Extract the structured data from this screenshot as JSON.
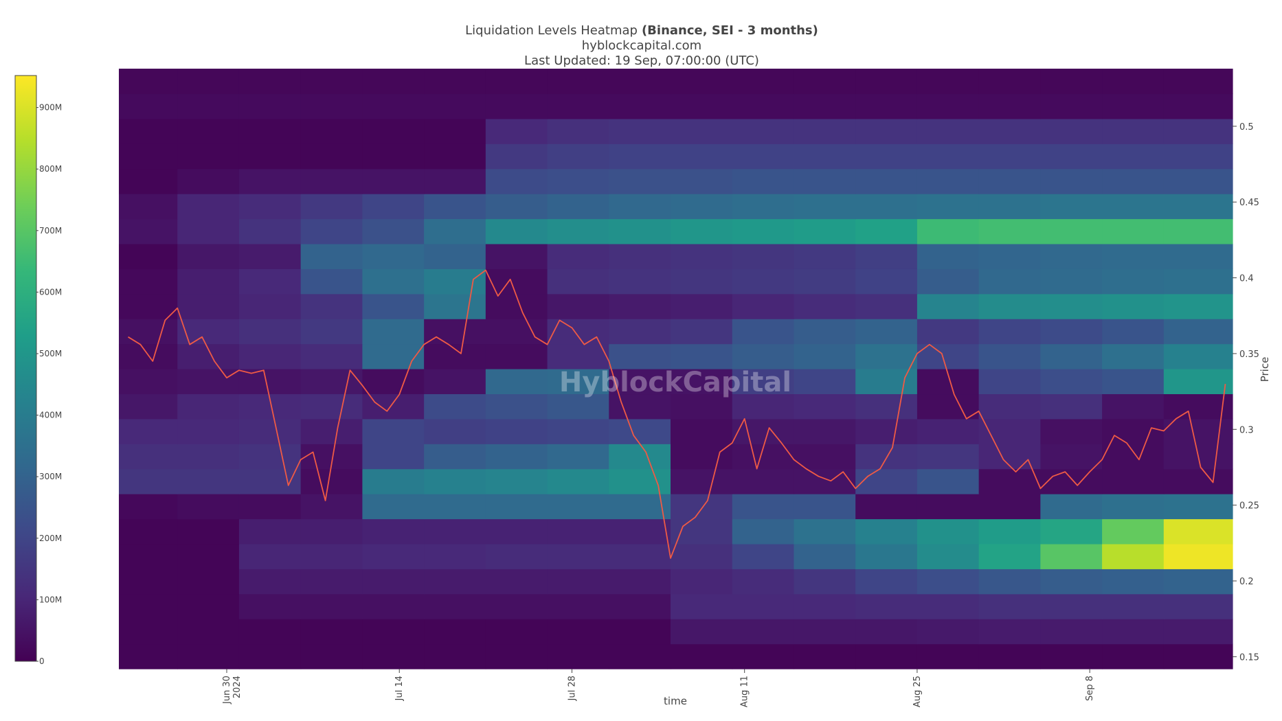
{
  "chart_data": {
    "type": "heatmap",
    "title": "Liquidation Levels Heatmap",
    "title_bold": "(Binance, SEI - 3 months)",
    "subtitle": "hyblockcapital.com",
    "updated": "Last Updated: 19 Sep, 07:00:00 (UTC)",
    "watermark": "HyblockCapital",
    "xlabel": "time",
    "ylabel": "Price",
    "xlim": [
      "2024-06-21T06:00",
      "2024-09-19T14:00"
    ],
    "xticks": [
      {
        "value": "2024-06-30",
        "label": "Jun 30"
      },
      {
        "value": "2024-07-14",
        "label": "Jul 14"
      },
      {
        "value": "2024-07-28",
        "label": "Jul 28"
      },
      {
        "value": "2024-08-11",
        "label": "Aug 11"
      },
      {
        "value": "2024-08-25",
        "label": "Aug 25"
      },
      {
        "value": "2024-09-08",
        "label": "Sep 8"
      }
    ],
    "xtick_year": "2024",
    "ylim": [
      0.142,
      0.538
    ],
    "yticks": [
      0.15,
      0.2,
      0.25,
      0.3,
      0.35,
      0.4,
      0.45,
      0.5
    ],
    "x_edges": [
      "2024-06-21T06:00",
      "2024-06-26",
      "2024-07-01",
      "2024-07-06",
      "2024-07-11",
      "2024-07-16",
      "2024-07-21",
      "2024-07-26",
      "2024-07-31",
      "2024-08-05",
      "2024-08-10",
      "2024-08-15",
      "2024-08-20",
      "2024-08-25",
      "2024-08-30",
      "2024-09-04",
      "2024-09-09",
      "2024-09-14",
      "2024-09-19T14:00"
    ],
    "y_edges": [
      0.142,
      0.1585,
      0.175,
      0.1915,
      0.208,
      0.2245,
      0.241,
      0.2575,
      0.274,
      0.2905,
      0.307,
      0.3235,
      0.34,
      0.3565,
      0.373,
      0.3895,
      0.406,
      0.4225,
      0.439,
      0.4555,
      0.472,
      0.4885,
      0.505,
      0.5215,
      0.538
    ],
    "z": [
      [
        10000000.0,
        10000000.0,
        10000000.0,
        10000000.0,
        10000000.0,
        10000000.0,
        10000000.0,
        10000000.0,
        10000000.0,
        10000000.0,
        10000000.0,
        10000000.0,
        10000000.0,
        10000000.0,
        10000000.0,
        10000000.0,
        10000000.0,
        10000000.0
      ],
      [
        10000000.0,
        10000000.0,
        10000000.0,
        10000000.0,
        10000000.0,
        10000000.0,
        10000000.0,
        10000000.0,
        10000000.0,
        60000000.0,
        60000000.0,
        60000000.0,
        60000000.0,
        65000000.0,
        70000000.0,
        70000000.0,
        70000000.0,
        70000000.0
      ],
      [
        10000000.0,
        10000000.0,
        40000000.0,
        40000000.0,
        40000000.0,
        40000000.0,
        40000000.0,
        40000000.0,
        40000000.0,
        110000000.0,
        110000000.0,
        110000000.0,
        120000000.0,
        120000000.0,
        130000000.0,
        130000000.0,
        130000000.0,
        130000000.0
      ],
      [
        10000000.0,
        10000000.0,
        70000000.0,
        70000000.0,
        70000000.0,
        70000000.0,
        70000000.0,
        70000000.0,
        70000000.0,
        100000000.0,
        120000000.0,
        150000000.0,
        200000000.0,
        230000000.0,
        260000000.0,
        280000000.0,
        290000000.0,
        300000000.0
      ],
      [
        10000000.0,
        10000000.0,
        100000000.0,
        100000000.0,
        110000000.0,
        110000000.0,
        120000000.0,
        120000000.0,
        120000000.0,
        130000000.0,
        200000000.0,
        300000000.0,
        380000000.0,
        460000000.0,
        550000000.0,
        700000000.0,
        850000000.0,
        930000000.0
      ],
      [
        10000000.0,
        10000000.0,
        80000000.0,
        80000000.0,
        90000000.0,
        90000000.0,
        90000000.0,
        90000000.0,
        90000000.0,
        150000000.0,
        300000000.0,
        360000000.0,
        420000000.0,
        480000000.0,
        520000000.0,
        560000000.0,
        720000000.0,
        900000000.0
      ],
      [
        20000000.0,
        30000000.0,
        30000000.0,
        50000000.0,
        330000000.0,
        330000000.0,
        330000000.0,
        330000000.0,
        330000000.0,
        150000000.0,
        250000000.0,
        250000000.0,
        30000000.0,
        30000000.0,
        30000000.0,
        330000000.0,
        350000000.0,
        360000000.0
      ],
      [
        150000000.0,
        150000000.0,
        150000000.0,
        30000000.0,
        400000000.0,
        420000000.0,
        430000000.0,
        450000000.0,
        480000000.0,
        50000000.0,
        50000000.0,
        50000000.0,
        200000000.0,
        250000000.0,
        30000000.0,
        30000000.0,
        30000000.0,
        30000000.0
      ],
      [
        130000000.0,
        130000000.0,
        140000000.0,
        40000000.0,
        200000000.0,
        280000000.0,
        300000000.0,
        320000000.0,
        450000000.0,
        30000000.0,
        40000000.0,
        40000000.0,
        140000000.0,
        150000000.0,
        100000000.0,
        50000000.0,
        30000000.0,
        50000000.0
      ],
      [
        110000000.0,
        110000000.0,
        120000000.0,
        80000000.0,
        200000000.0,
        180000000.0,
        190000000.0,
        200000000.0,
        210000000.0,
        30000000.0,
        60000000.0,
        60000000.0,
        80000000.0,
        90000000.0,
        100000000.0,
        40000000.0,
        30000000.0,
        50000000.0
      ],
      [
        60000000.0,
        100000000.0,
        110000000.0,
        120000000.0,
        80000000.0,
        220000000.0,
        240000000.0,
        260000000.0,
        50000000.0,
        40000000.0,
        100000000.0,
        110000000.0,
        130000000.0,
        30000000.0,
        120000000.0,
        130000000.0,
        50000000.0,
        30000000.0
      ],
      [
        40000000.0,
        50000000.0,
        50000000.0,
        60000000.0,
        30000000.0,
        50000000.0,
        320000000.0,
        330000000.0,
        50000000.0,
        50000000.0,
        180000000.0,
        200000000.0,
        400000000.0,
        30000000.0,
        200000000.0,
        230000000.0,
        250000000.0,
        500000000.0
      ],
      [
        30000000.0,
        80000000.0,
        100000000.0,
        120000000.0,
        330000000.0,
        30000000.0,
        30000000.0,
        120000000.0,
        240000000.0,
        250000000.0,
        280000000.0,
        300000000.0,
        360000000.0,
        200000000.0,
        250000000.0,
        300000000.0,
        350000000.0,
        420000000.0
      ],
      [
        40000000.0,
        110000000.0,
        130000000.0,
        160000000.0,
        330000000.0,
        40000000.0,
        40000000.0,
        120000000.0,
        130000000.0,
        150000000.0,
        250000000.0,
        280000000.0,
        300000000.0,
        160000000.0,
        200000000.0,
        220000000.0,
        250000000.0,
        300000000.0
      ],
      [
        20000000.0,
        80000000.0,
        100000000.0,
        140000000.0,
        250000000.0,
        370000000.0,
        30000000.0,
        60000000.0,
        70000000.0,
        80000000.0,
        100000000.0,
        120000000.0,
        130000000.0,
        430000000.0,
        460000000.0,
        470000000.0,
        480000000.0,
        490000000.0
      ],
      [
        20000000.0,
        80000000.0,
        110000000.0,
        250000000.0,
        350000000.0,
        400000000.0,
        30000000.0,
        130000000.0,
        140000000.0,
        150000000.0,
        160000000.0,
        170000000.0,
        190000000.0,
        280000000.0,
        320000000.0,
        330000000.0,
        340000000.0,
        350000000.0
      ],
      [
        10000000.0,
        60000000.0,
        70000000.0,
        300000000.0,
        320000000.0,
        300000000.0,
        50000000.0,
        120000000.0,
        130000000.0,
        140000000.0,
        150000000.0,
        160000000.0,
        180000000.0,
        300000000.0,
        310000000.0,
        320000000.0,
        330000000.0,
        330000000.0
      ],
      [
        50000000.0,
        100000000.0,
        140000000.0,
        200000000.0,
        240000000.0,
        340000000.0,
        450000000.0,
        470000000.0,
        480000000.0,
        500000000.0,
        510000000.0,
        520000000.0,
        540000000.0,
        650000000.0,
        660000000.0,
        660000000.0,
        660000000.0,
        660000000.0
      ],
      [
        40000000.0,
        100000000.0,
        120000000.0,
        160000000.0,
        200000000.0,
        250000000.0,
        280000000.0,
        300000000.0,
        320000000.0,
        330000000.0,
        340000000.0,
        350000000.0,
        350000000.0,
        360000000.0,
        360000000.0,
        370000000.0,
        370000000.0,
        370000000.0
      ],
      [
        10000000.0,
        30000000.0,
        50000000.0,
        50000000.0,
        50000000.0,
        50000000.0,
        220000000.0,
        230000000.0,
        240000000.0,
        240000000.0,
        250000000.0,
        250000000.0,
        250000000.0,
        250000000.0,
        250000000.0,
        250000000.0,
        250000000.0,
        250000000.0
      ],
      [
        10000000.0,
        10000000.0,
        10000000.0,
        10000000.0,
        10000000.0,
        10000000.0,
        160000000.0,
        180000000.0,
        190000000.0,
        190000000.0,
        190000000.0,
        190000000.0,
        190000000.0,
        190000000.0,
        190000000.0,
        190000000.0,
        190000000.0,
        190000000.0
      ],
      [
        10000000.0,
        10000000.0,
        10000000.0,
        10000000.0,
        10000000.0,
        10000000.0,
        110000000.0,
        130000000.0,
        140000000.0,
        140000000.0,
        140000000.0,
        140000000.0,
        140000000.0,
        140000000.0,
        140000000.0,
        140000000.0,
        140000000.0,
        140000000.0
      ],
      [
        25000000.0,
        25000000.0,
        25000000.0,
        25000000.0,
        25000000.0,
        25000000.0,
        25000000.0,
        25000000.0,
        25000000.0,
        25000000.0,
        25000000.0,
        25000000.0,
        25000000.0,
        25000000.0,
        25000000.0,
        25000000.0,
        25000000.0,
        25000000.0
      ],
      [
        15000000.0,
        15000000.0,
        15000000.0,
        15000000.0,
        15000000.0,
        15000000.0,
        15000000.0,
        15000000.0,
        15000000.0,
        15000000.0,
        15000000.0,
        15000000.0,
        15000000.0,
        15000000.0,
        15000000.0,
        15000000.0,
        15000000.0,
        15000000.0
      ]
    ],
    "colorscale": [
      "#440154",
      "#482878",
      "#3e4989",
      "#31688e",
      "#26828e",
      "#1f9e89",
      "#35b779",
      "#6ece58",
      "#b5de2b",
      "#fde725"
    ],
    "colorbar": {
      "lim": [
        0,
        952000000
      ],
      "ticks": [
        0,
        {
          "value": 100000000,
          "label": "100M"
        },
        {
          "value": 200000000,
          "label": "200M"
        },
        {
          "value": 300000000,
          "label": "300M"
        },
        {
          "value": 400000000,
          "label": "400M"
        },
        {
          "value": 500000000,
          "label": "500M"
        },
        {
          "value": 600000000,
          "label": "600M"
        },
        {
          "value": 700000000,
          "label": "700M"
        },
        {
          "value": 800000000,
          "label": "800M"
        },
        {
          "value": 900000000,
          "label": "900M"
        }
      ]
    },
    "price": {
      "color": "#ef5a45",
      "x": [
        "2024-06-22",
        "2024-06-23",
        "2024-06-24",
        "2024-06-25",
        "2024-06-26",
        "2024-06-27",
        "2024-06-28",
        "2024-06-29",
        "2024-06-30",
        "2024-07-01",
        "2024-07-02",
        "2024-07-03",
        "2024-07-04",
        "2024-07-05",
        "2024-07-06",
        "2024-07-07",
        "2024-07-08",
        "2024-07-09",
        "2024-07-10",
        "2024-07-11",
        "2024-07-12",
        "2024-07-13",
        "2024-07-14",
        "2024-07-15",
        "2024-07-16",
        "2024-07-17",
        "2024-07-18",
        "2024-07-19",
        "2024-07-20",
        "2024-07-21",
        "2024-07-22",
        "2024-07-23",
        "2024-07-24",
        "2024-07-25",
        "2024-07-26",
        "2024-07-27",
        "2024-07-28",
        "2024-07-29",
        "2024-07-30",
        "2024-07-31",
        "2024-08-01",
        "2024-08-02",
        "2024-08-03",
        "2024-08-04",
        "2024-08-05",
        "2024-08-06",
        "2024-08-07",
        "2024-08-08",
        "2024-08-09",
        "2024-08-10",
        "2024-08-11",
        "2024-08-12",
        "2024-08-13",
        "2024-08-14",
        "2024-08-15",
        "2024-08-16",
        "2024-08-17",
        "2024-08-18",
        "2024-08-19",
        "2024-08-20",
        "2024-08-21",
        "2024-08-22",
        "2024-08-23",
        "2024-08-24",
        "2024-08-25",
        "2024-08-26",
        "2024-08-27",
        "2024-08-28",
        "2024-08-29",
        "2024-08-30",
        "2024-08-31",
        "2024-09-01",
        "2024-09-02",
        "2024-09-03",
        "2024-09-04",
        "2024-09-05",
        "2024-09-06",
        "2024-09-07",
        "2024-09-08",
        "2024-09-09",
        "2024-09-10",
        "2024-09-11",
        "2024-09-12",
        "2024-09-13",
        "2024-09-14",
        "2024-09-15",
        "2024-09-16",
        "2024-09-17",
        "2024-09-18",
        "2024-09-19"
      ],
      "values": [
        0.361,
        0.356,
        0.345,
        0.372,
        0.38,
        0.356,
        0.361,
        0.345,
        0.334,
        0.339,
        0.337,
        0.339,
        0.301,
        0.263,
        0.28,
        0.285,
        0.253,
        0.301,
        0.339,
        0.329,
        0.318,
        0.312,
        0.323,
        0.345,
        0.356,
        0.361,
        0.356,
        0.35,
        0.399,
        0.405,
        0.388,
        0.399,
        0.377,
        0.361,
        0.356,
        0.372,
        0.367,
        0.356,
        0.361,
        0.345,
        0.318,
        0.296,
        0.285,
        0.263,
        0.215,
        0.236,
        0.242,
        0.253,
        0.285,
        0.291,
        0.307,
        0.274,
        0.301,
        0.291,
        0.28,
        0.274,
        0.269,
        0.266,
        0.272,
        0.261,
        0.269,
        0.274,
        0.288,
        0.334,
        0.35,
        0.356,
        0.35,
        0.323,
        0.307,
        0.312,
        0.296,
        0.28,
        0.272,
        0.28,
        0.261,
        0.269,
        0.272,
        0.263,
        0.272,
        0.28,
        0.296,
        0.291,
        0.28,
        0.301,
        0.299,
        0.307,
        0.312,
        0.275,
        0.265,
        0.33
      ]
    }
  }
}
